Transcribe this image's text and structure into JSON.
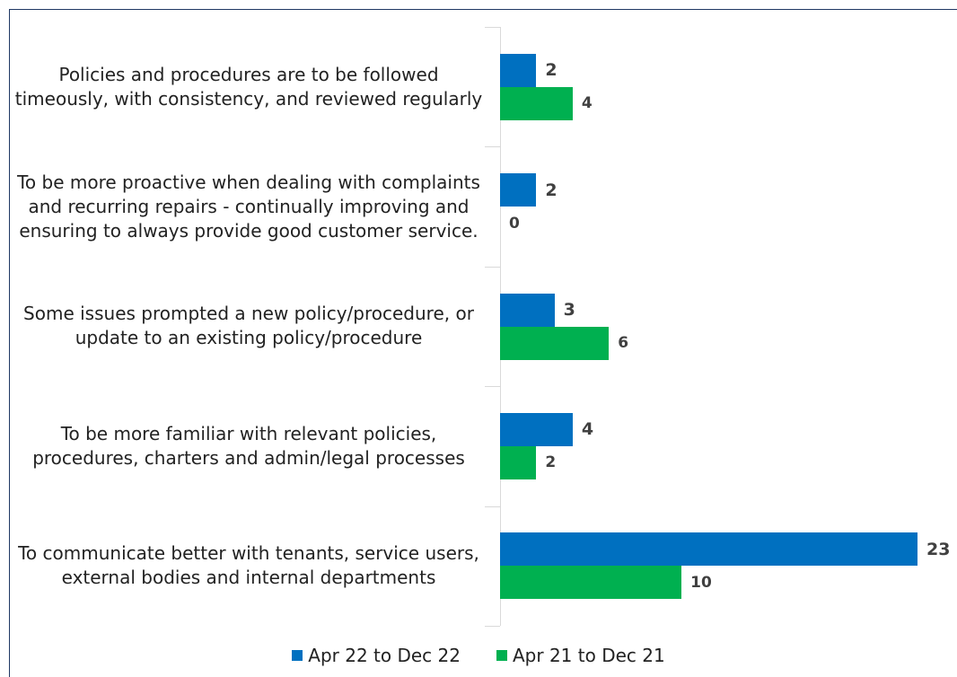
{
  "chart_data": {
    "type": "bar",
    "orientation": "horizontal",
    "categories": [
      "Policies and procedures are to be followed timeously, with consistency, and reviewed regularly",
      "To be more proactive when dealing with complaints and recurring repairs - continually improving and ensuring to always provide good customer service.",
      "Some issues prompted a new policy/procedure, or update to an existing policy/procedure",
      "To be more familiar with relevant policies, procedures, charters and admin/legal processes",
      "To communicate better with tenants, service users, external bodies and internal departments"
    ],
    "series": [
      {
        "name": "Apr 22 to Dec 22",
        "color": "#0070c0",
        "values": [
          2,
          2,
          3,
          4,
          23
        ]
      },
      {
        "name": "Apr 21 to Dec 21",
        "color": "#00b050",
        "values": [
          4,
          0,
          6,
          2,
          10
        ]
      }
    ],
    "legend": "bottom"
  }
}
